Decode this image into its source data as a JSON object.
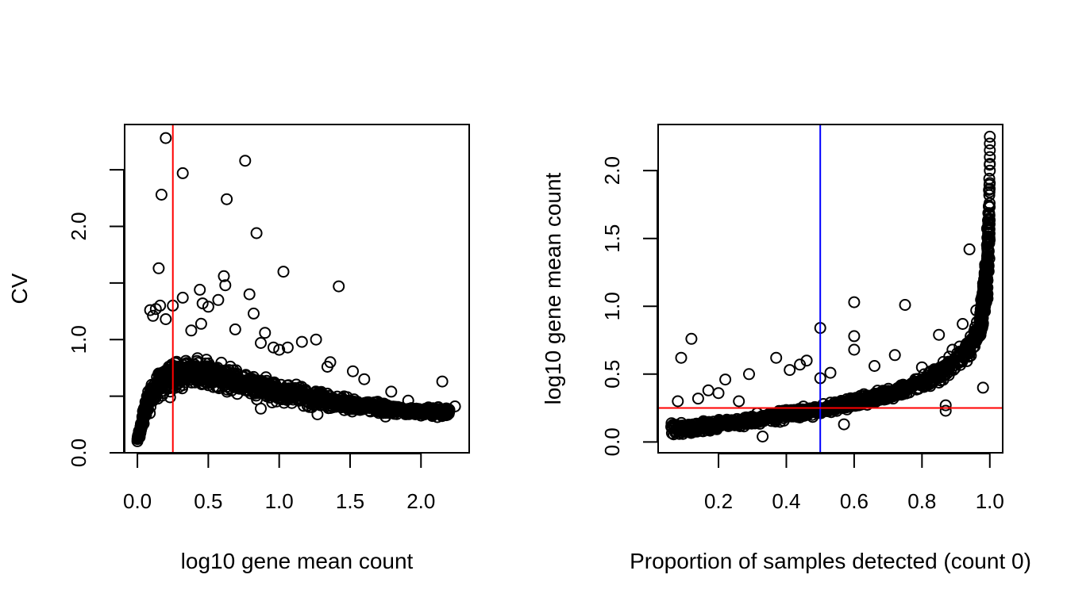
{
  "chart_data": [
    {
      "type": "scatter",
      "title": "",
      "xlabel": "log10 gene mean count",
      "ylabel": "CV",
      "xlim": [
        -0.09,
        2.34
      ],
      "ylim": [
        0.0,
        2.9
      ],
      "xticks": [
        0.0,
        0.5,
        1.0,
        1.5,
        2.0
      ],
      "xtick_labels": [
        "0.0",
        "0.5",
        "1.0",
        "1.5",
        "2.0"
      ],
      "yticks": [
        0.0,
        0.5,
        1.0,
        1.5,
        2.0,
        2.5
      ],
      "ytick_labels": [
        "0.0",
        "",
        "1.0",
        "",
        "2.0",
        ""
      ],
      "grid": false,
      "marker": "open-circle",
      "reference_lines": [
        {
          "orientation": "vertical",
          "value": 0.25,
          "color": "#ff0000"
        }
      ],
      "band": {
        "description": "dense point cloud: rising sharply from CV~0.1 at x=0 to a peak CV~0.7 near x=0.4, then declining to ~0.35 at x=2.2",
        "x": [
          0.0,
          0.02,
          0.05,
          0.1,
          0.15,
          0.2,
          0.3,
          0.4,
          0.5,
          0.6,
          0.8,
          1.0,
          1.2,
          1.4,
          1.6,
          1.8,
          2.0,
          2.2
        ],
        "y_center": [
          0.12,
          0.2,
          0.35,
          0.52,
          0.62,
          0.66,
          0.7,
          0.71,
          0.7,
          0.67,
          0.6,
          0.54,
          0.49,
          0.45,
          0.41,
          0.38,
          0.36,
          0.36
        ],
        "y_spread": [
          0.03,
          0.07,
          0.12,
          0.16,
          0.17,
          0.17,
          0.17,
          0.17,
          0.16,
          0.15,
          0.13,
          0.11,
          0.1,
          0.09,
          0.07,
          0.06,
          0.05,
          0.05
        ]
      },
      "outliers": [
        {
          "x": 0.2,
          "y": 2.78
        },
        {
          "x": 0.76,
          "y": 2.58
        },
        {
          "x": 0.32,
          "y": 2.47
        },
        {
          "x": 0.17,
          "y": 2.28
        },
        {
          "x": 0.63,
          "y": 2.24
        },
        {
          "x": 0.84,
          "y": 1.94
        },
        {
          "x": 0.15,
          "y": 1.63
        },
        {
          "x": 1.03,
          "y": 1.6
        },
        {
          "x": 0.61,
          "y": 1.56
        },
        {
          "x": 0.62,
          "y": 1.48
        },
        {
          "x": 1.42,
          "y": 1.47
        },
        {
          "x": 0.44,
          "y": 1.44
        },
        {
          "x": 0.79,
          "y": 1.4
        },
        {
          "x": 0.32,
          "y": 1.37
        },
        {
          "x": 0.57,
          "y": 1.35
        },
        {
          "x": 0.46,
          "y": 1.32
        },
        {
          "x": 0.16,
          "y": 1.3
        },
        {
          "x": 0.25,
          "y": 1.3
        },
        {
          "x": 0.09,
          "y": 1.26
        },
        {
          "x": 0.13,
          "y": 1.27
        },
        {
          "x": 0.11,
          "y": 1.21
        },
        {
          "x": 0.2,
          "y": 1.18
        },
        {
          "x": 0.5,
          "y": 1.29
        },
        {
          "x": 0.82,
          "y": 1.23
        },
        {
          "x": 0.45,
          "y": 1.14
        },
        {
          "x": 0.69,
          "y": 1.09
        },
        {
          "x": 0.38,
          "y": 1.08
        },
        {
          "x": 0.9,
          "y": 1.06
        },
        {
          "x": 1.16,
          "y": 0.98
        },
        {
          "x": 1.26,
          "y": 1.0
        },
        {
          "x": 0.87,
          "y": 0.97
        },
        {
          "x": 1.06,
          "y": 0.93
        },
        {
          "x": 0.96,
          "y": 0.93
        },
        {
          "x": 1.0,
          "y": 0.91
        },
        {
          "x": 1.36,
          "y": 0.8
        },
        {
          "x": 1.34,
          "y": 0.76
        },
        {
          "x": 1.52,
          "y": 0.72
        },
        {
          "x": 1.6,
          "y": 0.65
        },
        {
          "x": 1.79,
          "y": 0.54
        },
        {
          "x": 2.15,
          "y": 0.63
        },
        {
          "x": 2.24,
          "y": 0.41
        },
        {
          "x": 2.2,
          "y": 0.38
        },
        {
          "x": 1.91,
          "y": 0.46
        },
        {
          "x": 0.23,
          "y": 0.49
        },
        {
          "x": 1.27,
          "y": 0.34
        },
        {
          "x": 0.87,
          "y": 0.39
        },
        {
          "x": 1.75,
          "y": 0.32
        }
      ]
    },
    {
      "type": "scatter",
      "title": "",
      "xlabel": "Proportion of samples detected (count 0)",
      "ylabel": "log10 gene mean count",
      "xlim": [
        0.022,
        1.038
      ],
      "ylim": [
        -0.08,
        2.34
      ],
      "xticks": [
        0.2,
        0.4,
        0.6,
        0.8,
        1.0
      ],
      "xtick_labels": [
        "0.2",
        "0.4",
        "0.6",
        "0.8",
        "1.0"
      ],
      "yticks": [
        0.0,
        0.5,
        1.0,
        1.5,
        2.0
      ],
      "ytick_labels": [
        "0.0",
        "0.5",
        "1.0",
        "1.5",
        "2.0"
      ],
      "grid": false,
      "marker": "open-circle",
      "reference_lines": [
        {
          "orientation": "vertical",
          "value": 0.5,
          "color": "#0000ff"
        },
        {
          "orientation": "horizontal",
          "value": 0.25,
          "color": "#ff0000"
        }
      ],
      "band": {
        "description": "dense point cloud: flat near 0.1 at low proportion, slowly rising, then steep rise toward x=1.0 reaching ~2.25",
        "x": [
          0.06,
          0.1,
          0.2,
          0.3,
          0.4,
          0.5,
          0.6,
          0.7,
          0.8,
          0.85,
          0.9,
          0.94,
          0.97,
          0.99,
          1.0
        ],
        "y_center": [
          0.1,
          0.1,
          0.13,
          0.16,
          0.2,
          0.24,
          0.29,
          0.35,
          0.44,
          0.5,
          0.6,
          0.7,
          0.85,
          1.2,
          1.7
        ],
        "y_spread": [
          0.06,
          0.06,
          0.05,
          0.05,
          0.05,
          0.05,
          0.05,
          0.06,
          0.07,
          0.08,
          0.1,
          0.12,
          0.15,
          0.25,
          0.55
        ]
      },
      "outliers": [
        {
          "x": 1.0,
          "y": 2.25
        },
        {
          "x": 1.0,
          "y": 2.2
        },
        {
          "x": 1.0,
          "y": 2.15
        },
        {
          "x": 1.0,
          "y": 2.1
        },
        {
          "x": 1.0,
          "y": 2.05
        },
        {
          "x": 1.0,
          "y": 2.0
        },
        {
          "x": 0.94,
          "y": 1.42
        },
        {
          "x": 0.6,
          "y": 1.03
        },
        {
          "x": 0.75,
          "y": 1.01
        },
        {
          "x": 0.5,
          "y": 0.84
        },
        {
          "x": 0.12,
          "y": 0.76
        },
        {
          "x": 0.09,
          "y": 0.62
        },
        {
          "x": 0.6,
          "y": 0.78
        },
        {
          "x": 0.6,
          "y": 0.68
        },
        {
          "x": 0.37,
          "y": 0.62
        },
        {
          "x": 0.46,
          "y": 0.6
        },
        {
          "x": 0.44,
          "y": 0.57
        },
        {
          "x": 0.41,
          "y": 0.53
        },
        {
          "x": 0.29,
          "y": 0.5
        },
        {
          "x": 0.22,
          "y": 0.46
        },
        {
          "x": 0.2,
          "y": 0.36
        },
        {
          "x": 0.17,
          "y": 0.38
        },
        {
          "x": 0.85,
          "y": 0.79
        },
        {
          "x": 0.92,
          "y": 0.87
        },
        {
          "x": 0.96,
          "y": 0.97
        },
        {
          "x": 0.98,
          "y": 0.4
        },
        {
          "x": 0.87,
          "y": 0.23
        },
        {
          "x": 0.87,
          "y": 0.27
        },
        {
          "x": 0.72,
          "y": 0.64
        },
        {
          "x": 0.66,
          "y": 0.56
        },
        {
          "x": 0.53,
          "y": 0.51
        },
        {
          "x": 0.5,
          "y": 0.47
        },
        {
          "x": 0.08,
          "y": 0.3
        },
        {
          "x": 0.14,
          "y": 0.32
        },
        {
          "x": 0.26,
          "y": 0.3
        },
        {
          "x": 0.33,
          "y": 0.04
        },
        {
          "x": 0.57,
          "y": 0.13
        },
        {
          "x": 0.8,
          "y": 0.55
        },
        {
          "x": 0.89,
          "y": 0.68
        }
      ]
    }
  ]
}
